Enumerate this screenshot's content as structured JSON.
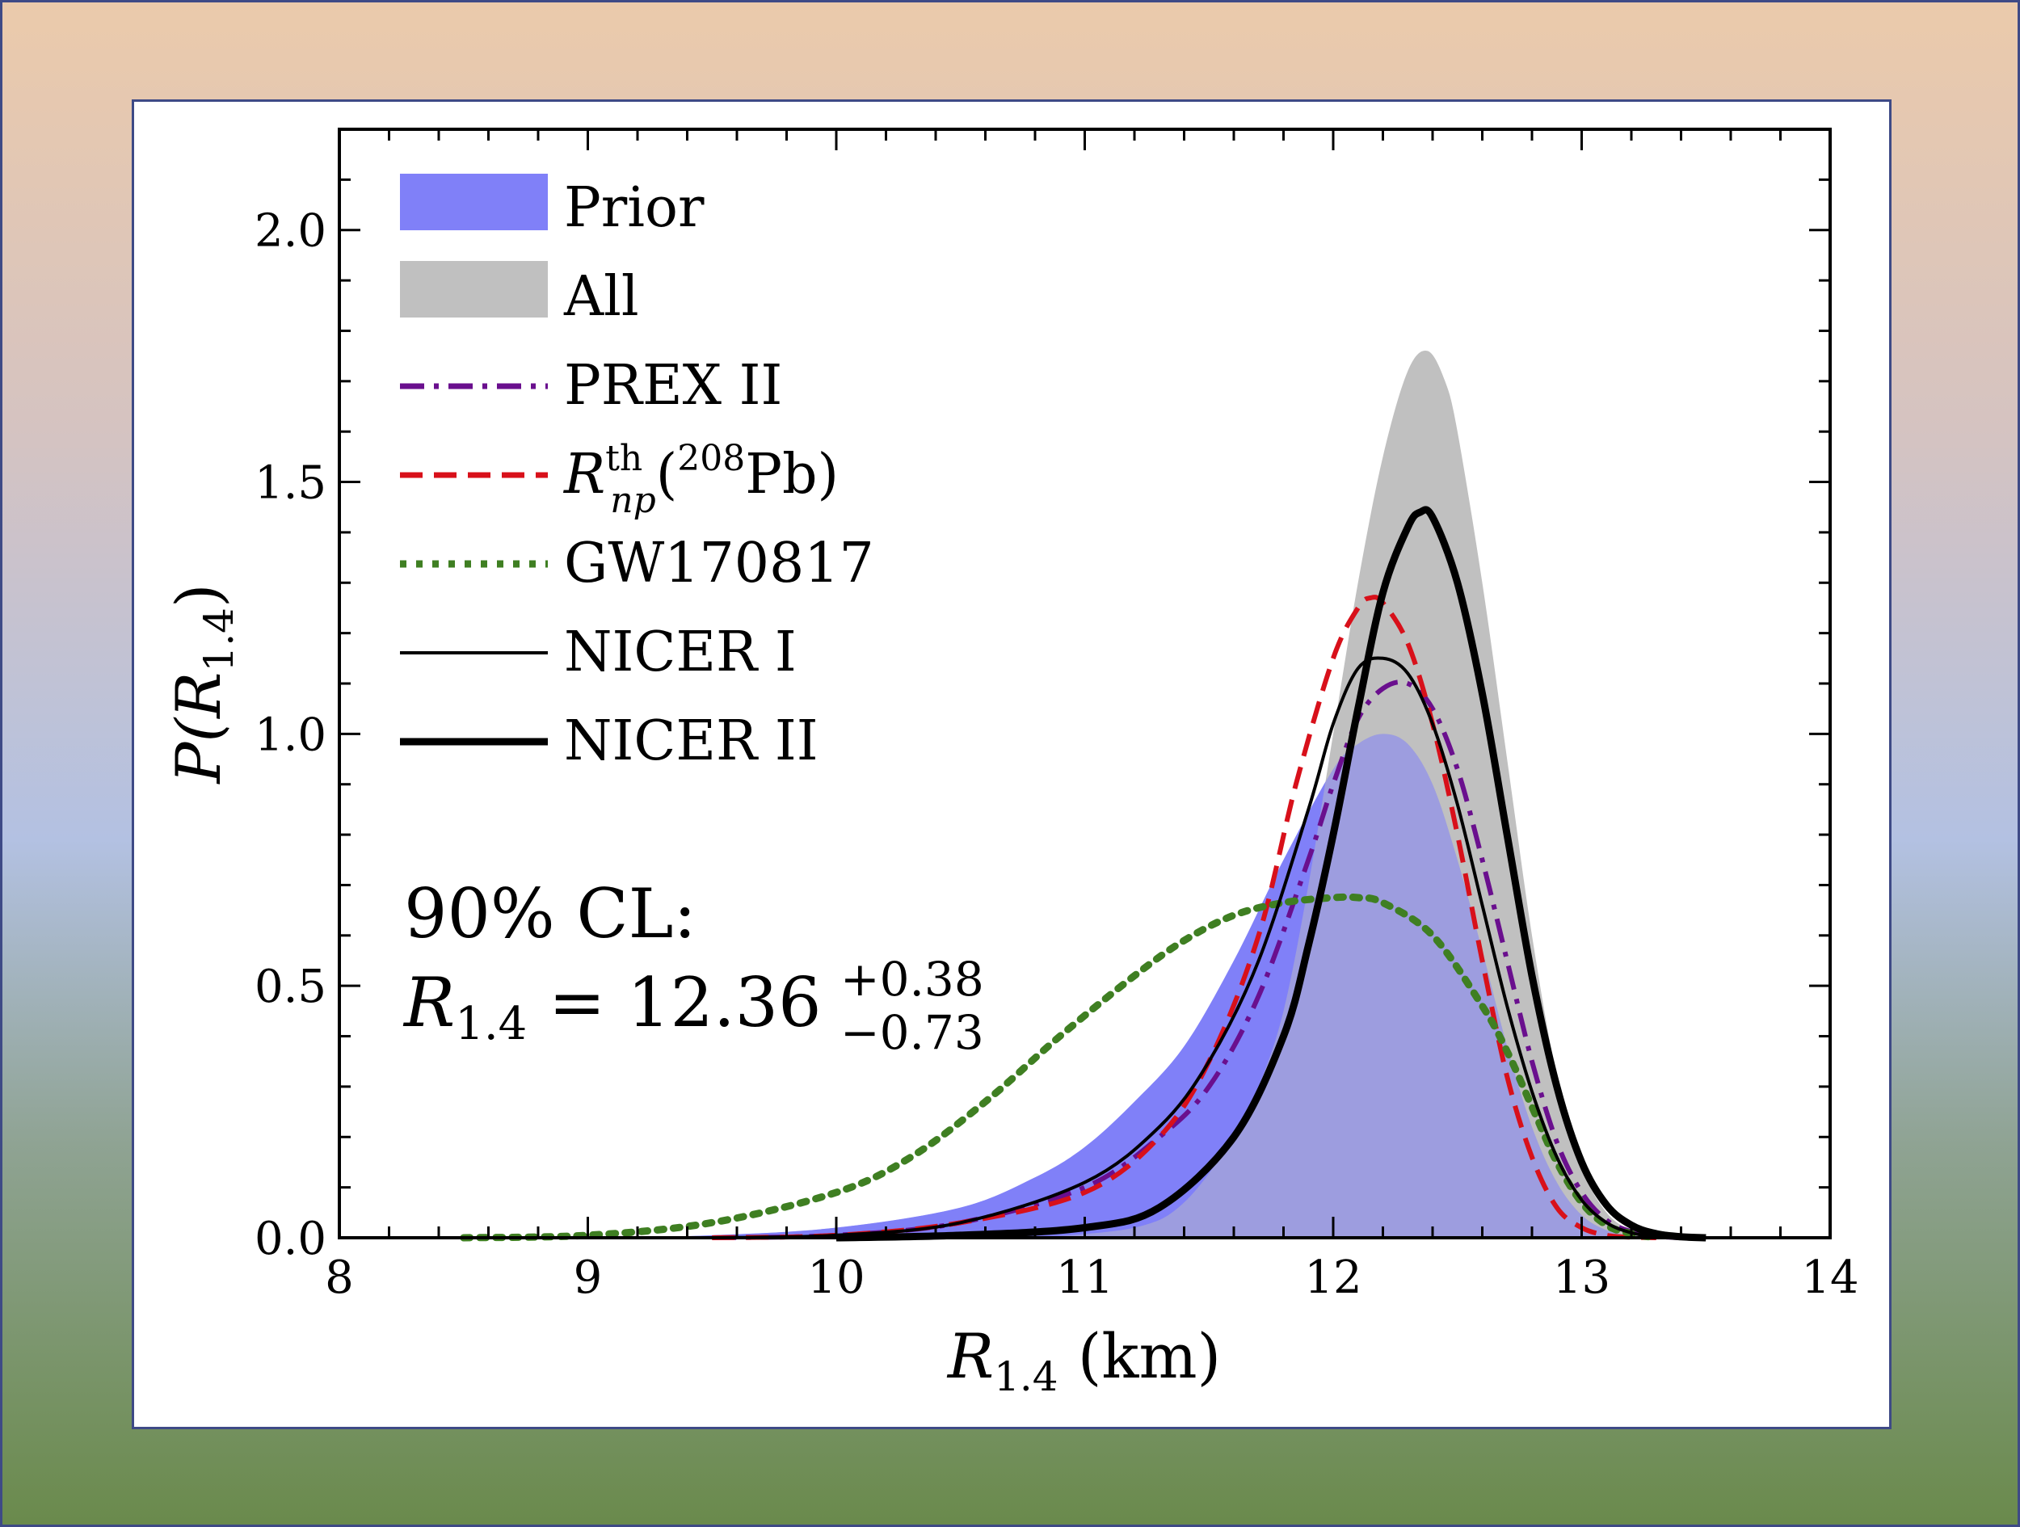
{
  "chart_data": {
    "type": "area",
    "xlabel": "R1.4 (km)",
    "xlabel_parts": {
      "sym": "R",
      "sub": "1.4",
      "rest": " (km)"
    },
    "ylabel": "P(R1.4)",
    "ylabel_parts": {
      "pre": "P(",
      "sym": "R",
      "sub": "1.4",
      "post": ")"
    },
    "xlim": [
      8,
      14
    ],
    "ylim": [
      0,
      2.2
    ],
    "xticks": [
      "8",
      "9",
      "10",
      "11",
      "12",
      "13",
      "14"
    ],
    "yticks": [
      "0.0",
      "0.5",
      "1.0",
      "1.5",
      "2.0"
    ],
    "grid": false,
    "legend_position": "top-left",
    "annotation": {
      "line1": "90% CL:",
      "lhs_sym": "R",
      "lhs_sub": "1.4",
      "eq": " = 12.36",
      "sup": "+0.38",
      "sub": "−0.73"
    },
    "series": [
      {
        "name": "Prior",
        "style": "fill",
        "color": "#8080f8",
        "x": [
          8.0,
          9.0,
          9.5,
          10.0,
          10.5,
          10.8,
          11.0,
          11.2,
          11.4,
          11.6,
          11.8,
          12.0,
          12.1,
          12.2,
          12.3,
          12.4,
          12.5,
          12.6,
          12.7,
          12.8,
          12.9,
          13.0,
          13.1,
          13.2,
          13.3,
          13.4,
          13.5
        ],
        "y": [
          0.0,
          0.0,
          0.005,
          0.02,
          0.06,
          0.12,
          0.18,
          0.27,
          0.38,
          0.55,
          0.75,
          0.93,
          0.98,
          1.0,
          0.98,
          0.9,
          0.75,
          0.57,
          0.38,
          0.22,
          0.11,
          0.045,
          0.015,
          0.004,
          0.001,
          0.0,
          0.0
        ]
      },
      {
        "name": "All",
        "style": "fill",
        "color": "#c0c0c0",
        "x": [
          10.8,
          11.2,
          11.4,
          11.6,
          11.7,
          11.8,
          11.9,
          12.0,
          12.1,
          12.2,
          12.3,
          12.38,
          12.45,
          12.5,
          12.6,
          12.7,
          12.8,
          12.9,
          13.0,
          13.1,
          13.2,
          13.3,
          13.4
        ],
        "y": [
          0.0,
          0.02,
          0.07,
          0.2,
          0.3,
          0.45,
          0.7,
          1.0,
          1.3,
          1.55,
          1.72,
          1.76,
          1.7,
          1.6,
          1.3,
          0.95,
          0.6,
          0.32,
          0.14,
          0.05,
          0.015,
          0.004,
          0.0
        ]
      },
      {
        "name": "PREX II",
        "style": "dashdot",
        "color": "#6a0f8e",
        "x": [
          9.5,
          10.0,
          10.5,
          11.0,
          11.3,
          11.5,
          11.7,
          11.9,
          12.0,
          12.1,
          12.2,
          12.3,
          12.4,
          12.5,
          12.6,
          12.7,
          12.8,
          12.9,
          13.0,
          13.1,
          13.2,
          13.3,
          13.4
        ],
        "y": [
          0.0,
          0.005,
          0.03,
          0.1,
          0.2,
          0.3,
          0.48,
          0.75,
          0.9,
          1.03,
          1.09,
          1.1,
          1.05,
          0.93,
          0.75,
          0.55,
          0.35,
          0.19,
          0.09,
          0.035,
          0.012,
          0.003,
          0.0
        ]
      },
      {
        "name": "R_np^th(208Pb)",
        "style": "dashed",
        "color": "#d8101a",
        "x": [
          9.5,
          10.0,
          10.5,
          11.0,
          11.3,
          11.5,
          11.7,
          11.85,
          12.0,
          12.1,
          12.15,
          12.2,
          12.3,
          12.4,
          12.5,
          12.6,
          12.7,
          12.8,
          12.9,
          13.0,
          13.1,
          13.2,
          13.3
        ],
        "y": [
          0.0,
          0.005,
          0.03,
          0.09,
          0.2,
          0.35,
          0.6,
          0.9,
          1.15,
          1.25,
          1.27,
          1.26,
          1.18,
          1.02,
          0.8,
          0.55,
          0.32,
          0.16,
          0.06,
          0.02,
          0.005,
          0.001,
          0.0
        ]
      },
      {
        "name": "GW170817",
        "style": "dotted",
        "color": "#3f7f22",
        "x": [
          8.5,
          9.0,
          9.5,
          10.0,
          10.3,
          10.6,
          10.9,
          11.2,
          11.4,
          11.6,
          11.8,
          12.0,
          12.1,
          12.2,
          12.4,
          12.6,
          12.7,
          12.8,
          12.9,
          13.0,
          13.1,
          13.2,
          13.3
        ],
        "y": [
          0.0,
          0.005,
          0.03,
          0.09,
          0.16,
          0.27,
          0.4,
          0.52,
          0.59,
          0.64,
          0.665,
          0.675,
          0.675,
          0.665,
          0.6,
          0.46,
          0.37,
          0.26,
          0.15,
          0.07,
          0.025,
          0.008,
          0.0
        ]
      },
      {
        "name": "NICER I",
        "style": "thin",
        "color": "#000000",
        "x": [
          9.5,
          10.0,
          10.5,
          11.0,
          11.3,
          11.5,
          11.7,
          11.9,
          12.0,
          12.1,
          12.2,
          12.3,
          12.4,
          12.5,
          12.6,
          12.7,
          12.8,
          12.9,
          13.0,
          13.1,
          13.2,
          13.3,
          13.4
        ],
        "y": [
          0.0,
          0.005,
          0.03,
          0.11,
          0.22,
          0.35,
          0.55,
          0.85,
          1.02,
          1.13,
          1.15,
          1.12,
          1.02,
          0.86,
          0.66,
          0.46,
          0.29,
          0.16,
          0.075,
          0.03,
          0.01,
          0.002,
          0.0
        ]
      },
      {
        "name": "NICER II",
        "style": "thick",
        "color": "#000000",
        "x": [
          10.0,
          10.5,
          11.0,
          11.3,
          11.6,
          11.8,
          11.9,
          12.0,
          12.1,
          12.2,
          12.3,
          12.35,
          12.4,
          12.5,
          12.6,
          12.7,
          12.8,
          12.9,
          13.0,
          13.1,
          13.2,
          13.3,
          13.4,
          13.5
        ],
        "y": [
          0.0,
          0.005,
          0.02,
          0.06,
          0.2,
          0.4,
          0.58,
          0.8,
          1.05,
          1.28,
          1.41,
          1.44,
          1.43,
          1.3,
          1.08,
          0.8,
          0.52,
          0.3,
          0.15,
          0.065,
          0.025,
          0.008,
          0.002,
          0.0
        ]
      }
    ]
  },
  "legend": {
    "prior": "Prior",
    "all": "All",
    "prex": "PREX II",
    "rnp_sym": "R",
    "rnp_sup": "th",
    "rnp_sub": "np",
    "rnp_paren_open": "(",
    "rnp_iso": "208",
    "rnp_el": "Pb)",
    "gw": "GW170817",
    "nicer1": "NICER I",
    "nicer2": "NICER II"
  }
}
